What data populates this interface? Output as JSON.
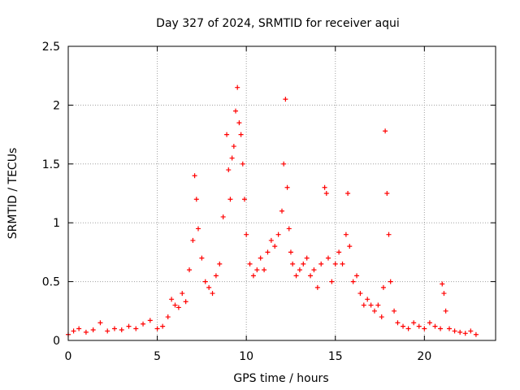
{
  "chart_data": {
    "type": "scatter",
    "title": "Day 327 of 2024, SRMTID for receiver aqui",
    "xlabel": "GPS time / hours",
    "ylabel": "SRMTID / TECUs",
    "xlim": [
      0,
      24
    ],
    "ylim": [
      0,
      2.5
    ],
    "xticks": [
      0,
      5,
      10,
      15,
      20
    ],
    "xtick_labels": [
      "0",
      "5",
      "10",
      "15",
      "20"
    ],
    "yticks": [
      0,
      0.5,
      1,
      1.5,
      2,
      2.5
    ],
    "ytick_labels": [
      "0",
      "0.5",
      "1",
      "1.5",
      "2",
      "2.5"
    ],
    "grid": true,
    "marker": "+",
    "series": [
      {
        "name": "SRMTID",
        "color": "#ff0000",
        "x": [
          0.0,
          0.3,
          0.6,
          1.0,
          1.4,
          1.8,
          2.2,
          2.6,
          3.0,
          3.4,
          3.8,
          4.2,
          4.6,
          5.0,
          5.3,
          5.6,
          5.8,
          6.0,
          6.2,
          6.4,
          6.6,
          6.8,
          7.0,
          7.1,
          7.2,
          7.3,
          7.5,
          7.7,
          7.9,
          8.1,
          8.3,
          8.5,
          8.7,
          8.9,
          9.0,
          9.1,
          9.2,
          9.3,
          9.4,
          9.5,
          9.6,
          9.7,
          9.8,
          9.9,
          10.0,
          10.2,
          10.4,
          10.6,
          10.8,
          11.0,
          11.2,
          11.4,
          11.6,
          11.8,
          12.0,
          12.1,
          12.2,
          12.3,
          12.4,
          12.5,
          12.6,
          12.8,
          13.0,
          13.2,
          13.4,
          13.6,
          13.8,
          14.0,
          14.2,
          14.4,
          14.5,
          14.6,
          14.8,
          15.0,
          15.2,
          15.4,
          15.6,
          15.7,
          15.8,
          16.0,
          16.2,
          16.4,
          16.6,
          16.8,
          17.0,
          17.2,
          17.4,
          17.6,
          17.7,
          17.8,
          17.9,
          18.0,
          18.1,
          18.3,
          18.5,
          18.8,
          19.1,
          19.4,
          19.7,
          20.0,
          20.3,
          20.6,
          20.9,
          21.0,
          21.1,
          21.2,
          21.4,
          21.7,
          22.0,
          22.3,
          22.6,
          22.9
        ],
        "y": [
          0.05,
          0.08,
          0.1,
          0.07,
          0.09,
          0.15,
          0.08,
          0.1,
          0.09,
          0.12,
          0.1,
          0.14,
          0.17,
          0.1,
          0.12,
          0.2,
          0.35,
          0.3,
          0.28,
          0.4,
          0.33,
          0.6,
          0.85,
          1.4,
          1.2,
          0.95,
          0.7,
          0.5,
          0.45,
          0.4,
          0.55,
          0.65,
          1.05,
          1.75,
          1.45,
          1.2,
          1.55,
          1.65,
          1.95,
          2.15,
          1.85,
          1.75,
          1.5,
          1.2,
          0.9,
          0.65,
          0.55,
          0.6,
          0.7,
          0.6,
          0.75,
          0.85,
          0.8,
          0.9,
          1.1,
          1.5,
          2.05,
          1.3,
          0.95,
          0.75,
          0.65,
          0.55,
          0.6,
          0.65,
          0.7,
          0.55,
          0.6,
          0.45,
          0.65,
          1.3,
          1.25,
          0.7,
          0.5,
          0.65,
          0.75,
          0.65,
          0.9,
          1.25,
          0.8,
          0.5,
          0.55,
          0.4,
          0.3,
          0.35,
          0.3,
          0.25,
          0.3,
          0.2,
          0.45,
          1.78,
          1.25,
          0.9,
          0.5,
          0.25,
          0.15,
          0.12,
          0.1,
          0.15,
          0.12,
          0.1,
          0.15,
          0.12,
          0.1,
          0.48,
          0.4,
          0.25,
          0.1,
          0.08,
          0.07,
          0.06,
          0.08,
          0.05
        ]
      }
    ]
  }
}
